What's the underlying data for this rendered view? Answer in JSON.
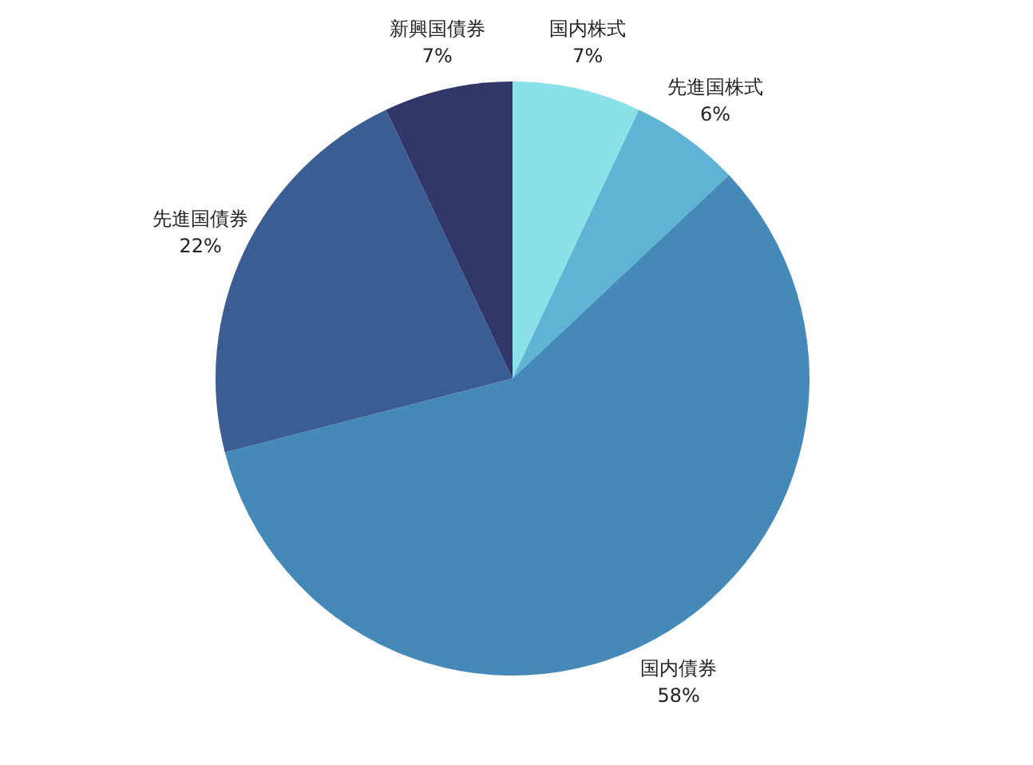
{
  "chart_data": {
    "type": "pie",
    "categories": [
      "国内株式",
      "先進国株式",
      "国内債券",
      "先進国債券",
      "新興国債券"
    ],
    "values": [
      7,
      6,
      58,
      22,
      7
    ],
    "value_labels": [
      "7%",
      "6%",
      "58%",
      "22%",
      "7%"
    ],
    "colors": [
      "#8ae1e7",
      "#5fb4d5",
      "#4589b8",
      "#3a5d94",
      "#32376a"
    ]
  }
}
